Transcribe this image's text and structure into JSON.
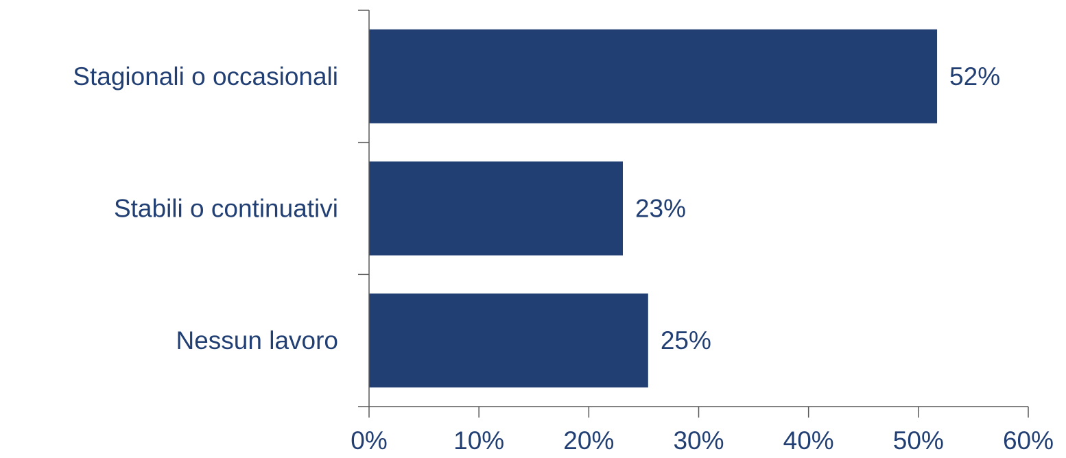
{
  "chart_data": {
    "type": "bar",
    "orientation": "horizontal",
    "categories": [
      "Stagionali o occasionali",
      "Stabili o continuativi",
      "Nessun lavoro"
    ],
    "values": [
      51.7,
      23.1,
      25.4
    ],
    "data_labels": [
      "52%",
      "23%",
      "25%"
    ],
    "xlim": [
      0,
      60
    ],
    "x_ticks": [
      0,
      10,
      20,
      30,
      40,
      50,
      60
    ],
    "x_tick_labels": [
      "0%",
      "10%",
      "20%",
      "30%",
      "40%",
      "50%",
      "60%"
    ],
    "title": "",
    "xlabel": "",
    "ylabel": "",
    "grid": false,
    "legend": "none"
  },
  "colors": {
    "bar": "#223F73",
    "text": "#223F73",
    "axis": "#595959"
  }
}
